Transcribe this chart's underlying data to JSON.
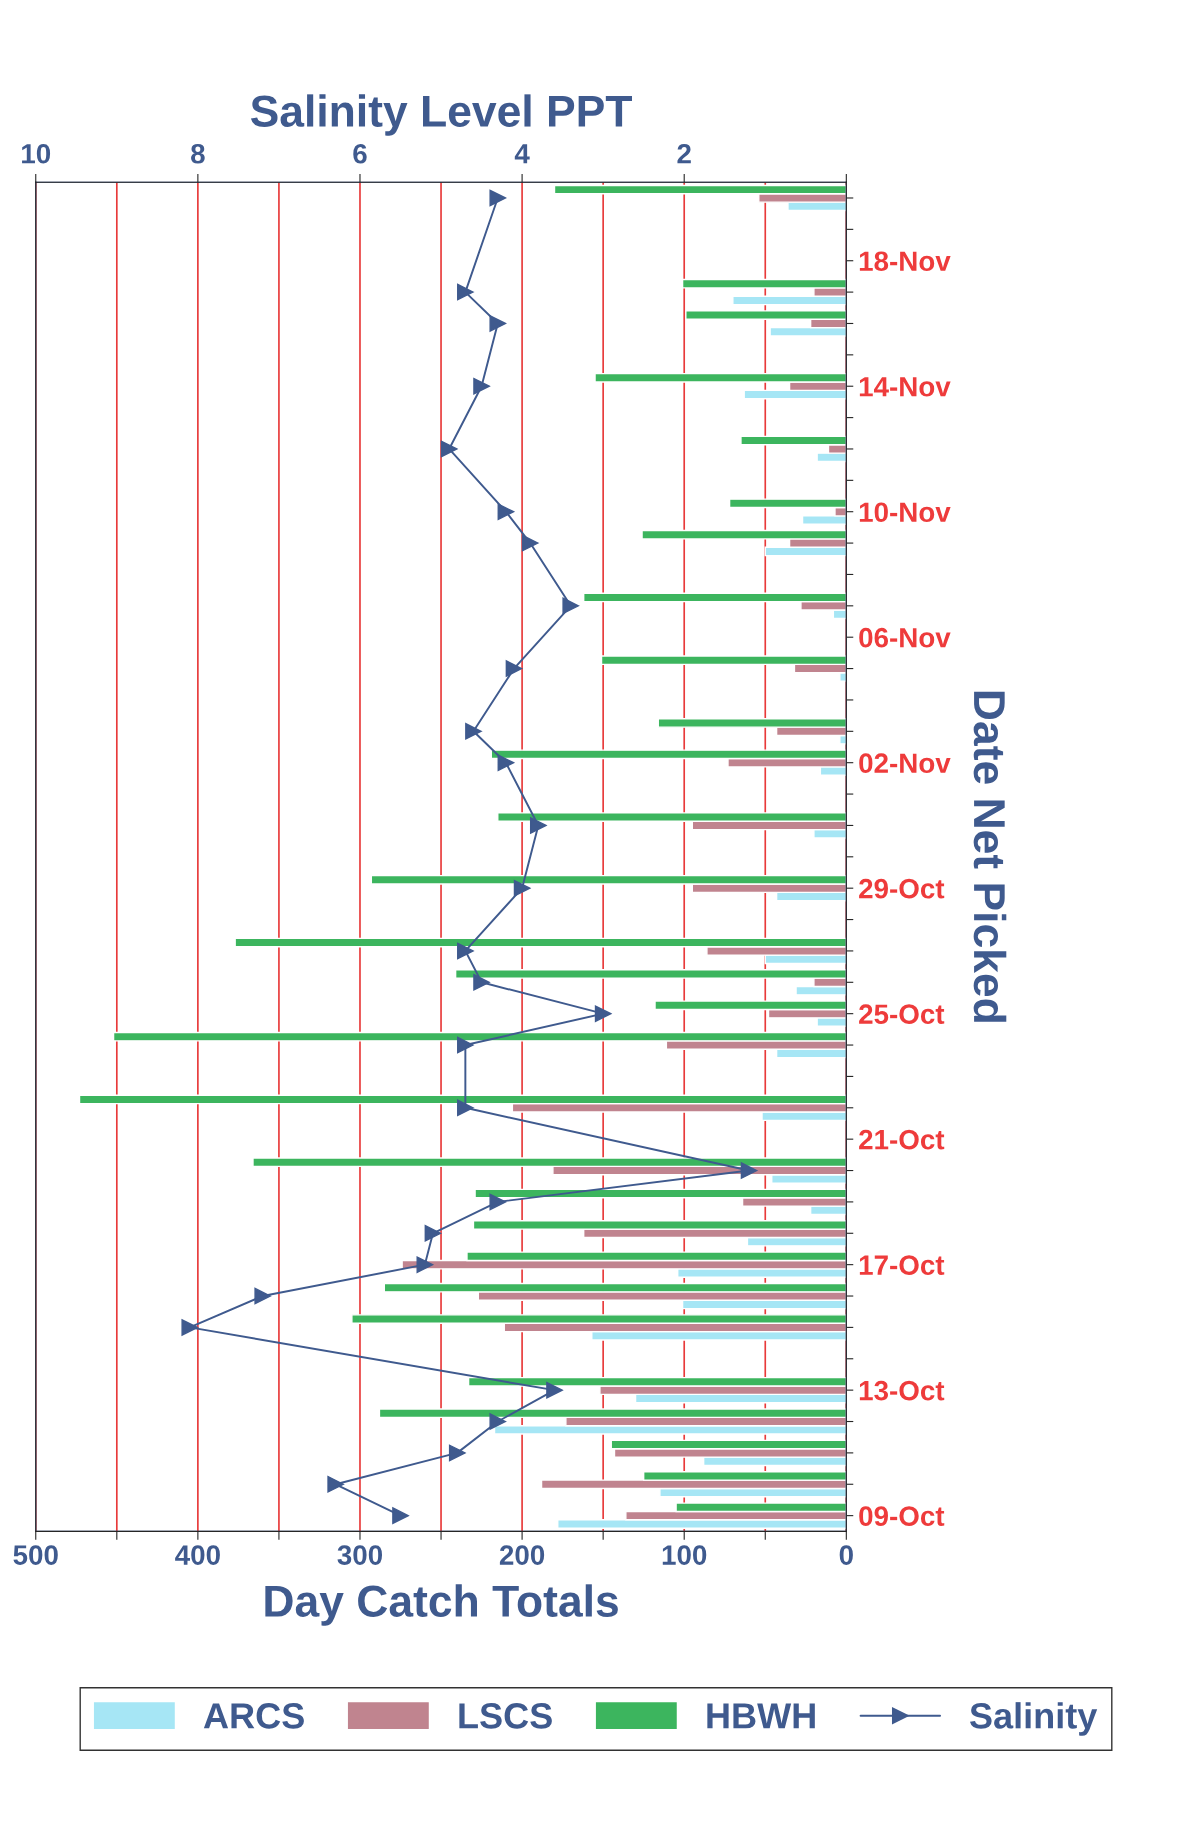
{
  "chart_data": {
    "type": "bar",
    "orientation": "horizontal",
    "xlabel": "Day Catch Totals",
    "x2label": "Salinity Level PPT",
    "ylabel": "Date Net Picked",
    "categories": [
      null,
      null,
      "18-Nov",
      null,
      null,
      null,
      "14-Nov",
      null,
      null,
      null,
      "10-Nov",
      null,
      null,
      null,
      "06-Nov",
      null,
      null,
      null,
      "02-Nov",
      null,
      null,
      null,
      "29-Oct",
      null,
      null,
      null,
      "25-Oct",
      null,
      null,
      null,
      "21-Oct",
      null,
      null,
      null,
      "17-Oct",
      null,
      null,
      null,
      "13-Oct",
      null,
      null,
      null,
      "09-Oct"
    ],
    "series": [
      {
        "name": "ARCS",
        "color": "#a6e6f5",
        "values": [
          36,
          null,
          null,
          70,
          47,
          null,
          63,
          null,
          18,
          null,
          27,
          50,
          null,
          8,
          null,
          4,
          null,
          4,
          16,
          null,
          20,
          null,
          43,
          null,
          50,
          31,
          18,
          43,
          null,
          52,
          null,
          46,
          22,
          61,
          104,
          101,
          157,
          null,
          130,
          217,
          88,
          115,
          178
        ]
      },
      {
        "name": "LSCS",
        "color": "#c0848f",
        "values": [
          54,
          null,
          null,
          20,
          22,
          null,
          35,
          null,
          11,
          null,
          7,
          35,
          null,
          28,
          null,
          32,
          null,
          43,
          73,
          null,
          95,
          null,
          95,
          null,
          86,
          20,
          48,
          111,
          null,
          206,
          null,
          181,
          64,
          162,
          274,
          227,
          211,
          null,
          152,
          173,
          143,
          188,
          136
        ]
      },
      {
        "name": "HBWH",
        "color": "#3cb55e",
        "values": [
          180,
          null,
          null,
          101,
          99,
          null,
          155,
          null,
          65,
          null,
          72,
          126,
          null,
          162,
          null,
          151,
          null,
          116,
          219,
          null,
          215,
          null,
          293,
          null,
          377,
          241,
          118,
          452,
          null,
          473,
          null,
          366,
          229,
          230,
          234,
          285,
          305,
          null,
          233,
          288,
          145,
          125,
          105
        ]
      },
      {
        "name": "Salinity",
        "type": "line",
        "axis": "x2",
        "color": "#3f5a8e",
        "marker": "triangle",
        "values": [
          4.3,
          null,
          null,
          4.7,
          4.3,
          null,
          4.5,
          null,
          4.9,
          null,
          4.2,
          3.9,
          null,
          3.4,
          null,
          4.1,
          null,
          4.6,
          4.2,
          null,
          3.8,
          null,
          4.0,
          null,
          4.7,
          4.5,
          3.0,
          4.7,
          null,
          4.7,
          null,
          1.2,
          4.3,
          5.1,
          5.2,
          7.2,
          8.1,
          null,
          3.6,
          4.3,
          4.8,
          6.3,
          5.5
        ]
      }
    ],
    "xlim": [
      500,
      0
    ],
    "xticks": [
      0,
      {
        "value": 50,
        "label": null
      },
      100,
      {
        "value": 150,
        "label": null
      },
      200,
      {
        "value": 250,
        "label": null
      },
      300,
      {
        "value": 350,
        "label": null
      },
      400,
      {
        "value": 450,
        "label": null
      },
      500
    ],
    "x2lim": [
      10,
      0
    ],
    "x2ticks": [
      {
        "value": 0,
        "label": null
      },
      2,
      4,
      6,
      8,
      10
    ],
    "grid": "x",
    "legend": "bottom"
  }
}
